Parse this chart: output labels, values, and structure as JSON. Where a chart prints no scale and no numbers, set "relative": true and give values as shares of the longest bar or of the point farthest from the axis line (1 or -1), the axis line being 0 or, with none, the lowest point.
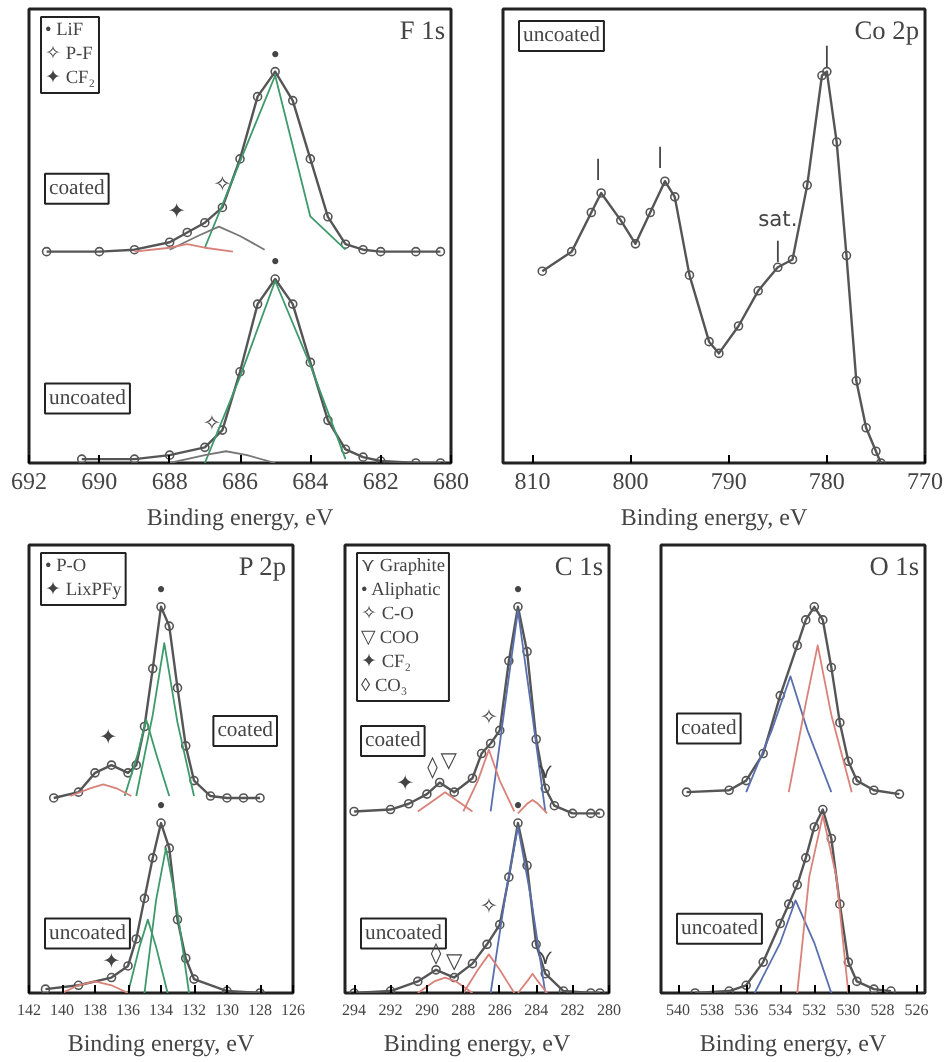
{
  "chart_data": [
    {
      "type": "line",
      "title": "F 1s",
      "xlabel": "Binding energy, eV",
      "relative": true,
      "xlim": [
        692,
        680
      ],
      "xticks": [
        692,
        690,
        688,
        686,
        684,
        682,
        680
      ],
      "annotations": [
        "• LiF",
        "✧ P-F",
        "✦ CF₂",
        {
          "text": "•",
          "x": 685,
          "y": 1.0
        },
        {
          "text": "✧",
          "x": 686.5,
          "y": 0.67
        },
        {
          "text": "✦",
          "x": 687.8,
          "y": 0.6
        },
        {
          "text": "•",
          "x": 685,
          "y": 0.47
        },
        {
          "text": "✧",
          "x": 686.8,
          "y": 0.06
        }
      ],
      "series": [
        {
          "name": "coated",
          "color": "#555555",
          "marker": "circle",
          "x": [
            691.5,
            690,
            689,
            688,
            687.5,
            687,
            686.5,
            686,
            685.5,
            685,
            684.5,
            684,
            683.5,
            683,
            682.5,
            682,
            681,
            680.3
          ],
          "values": [
            0.54,
            0.54,
            0.545,
            0.564,
            0.589,
            0.614,
            0.653,
            0.777,
            0.936,
            1.0,
            0.926,
            0.777,
            0.629,
            0.559,
            0.545,
            0.54,
            0.54,
            0.54
          ]
        },
        {
          "color": "#3f9a6a",
          "marker": "none",
          "x": [
            687,
            686,
            685,
            684,
            683
          ],
          "values": [
            0.55,
            0.77,
            0.99,
            0.63,
            0.545
          ]
        },
        {
          "color": "#777777",
          "marker": "none",
          "x": [
            688,
            687.2,
            686.6,
            686,
            685.3
          ],
          "values": [
            0.545,
            0.58,
            0.604,
            0.58,
            0.545
          ]
        },
        {
          "color": "#d9827a",
          "marker": "none",
          "x": [
            689,
            688,
            687.5,
            687,
            686.2
          ],
          "values": [
            0.54,
            0.55,
            0.559,
            0.55,
            0.54
          ]
        },
        {
          "name": "uncoated",
          "color": "#555555",
          "marker": "circle",
          "x": [
            690.5,
            689,
            688,
            687,
            686.5,
            686,
            685.5,
            685,
            684.5,
            684,
            683.5,
            683,
            682.5,
            682,
            681,
            680.3
          ],
          "values": [
            0.01,
            0.01,
            0.02,
            0.04,
            0.084,
            0.233,
            0.406,
            0.47,
            0.406,
            0.257,
            0.109,
            0.035,
            0.015,
            0.005,
            0.0,
            0.0
          ]
        },
        {
          "color": "#3f9a6a",
          "marker": "none",
          "x": [
            687,
            686,
            685,
            684,
            683
          ],
          "values": [
            0.0,
            0.22,
            0.465,
            0.25,
            0.01
          ]
        },
        {
          "color": "#777777",
          "marker": "none",
          "x": [
            688,
            687,
            686.4,
            685.8,
            685
          ],
          "values": [
            0.0,
            0.02,
            0.03,
            0.02,
            0.0
          ]
        }
      ]
    },
    {
      "type": "line",
      "title": "Co 2p",
      "xlabel": "Binding energy, eV",
      "relative": true,
      "xlim": [
        813,
        770
      ],
      "xticks": [
        810,
        800,
        790,
        780,
        770
      ],
      "annotations": [
        {
          "text": "|",
          "x": 803.3,
          "y": 0.71
        },
        {
          "text": "|",
          "x": 797,
          "y": 0.74
        },
        {
          "text": "sat.\n|",
          "x": 785,
          "y": 0.5
        },
        {
          "text": "|",
          "x": 780,
          "y": 1.0
        }
      ],
      "series": [
        {
          "name": "uncoated",
          "color": "#555555",
          "marker": "circle",
          "x": [
            809,
            806,
            804,
            803,
            801,
            799.5,
            798,
            796.5,
            795.5,
            794,
            792,
            791,
            789,
            787,
            785,
            783.5,
            782,
            780.5,
            780,
            779,
            778,
            777,
            776,
            775,
            774.5
          ],
          "values": [
            0.49,
            0.54,
            0.64,
            0.69,
            0.62,
            0.56,
            0.64,
            0.72,
            0.68,
            0.48,
            0.31,
            0.28,
            0.35,
            0.44,
            0.5,
            0.52,
            0.71,
            0.99,
            1.0,
            0.82,
            0.53,
            0.21,
            0.09,
            0.03,
            0.0
          ]
        }
      ]
    },
    {
      "type": "line",
      "title": "P 2p",
      "xlabel": "Binding energy, eV",
      "relative": true,
      "xlim": [
        142,
        126
      ],
      "xticks": [
        142,
        140,
        138,
        136,
        134,
        132,
        130,
        128,
        126
      ],
      "annotations": [
        "• P-O",
        "✦ LixPFy",
        {
          "text": "•",
          "x": 134,
          "y": 1.0
        },
        {
          "text": "✦",
          "x": 137.2,
          "y": 0.62
        },
        {
          "text": "•",
          "x": 134,
          "y": 0.44
        },
        {
          "text": "✦",
          "x": 137,
          "y": 0.04
        }
      ],
      "series": [
        {
          "name": "coated",
          "color": "#555555",
          "marker": "circle",
          "x": [
            140.5,
            139,
            138,
            137,
            136,
            135.5,
            135,
            134.5,
            134,
            133.5,
            133,
            132.5,
            132,
            131,
            130,
            129,
            128
          ],
          "values": [
            0.505,
            0.52,
            0.57,
            0.59,
            0.57,
            0.59,
            0.69,
            0.84,
            1.0,
            0.95,
            0.79,
            0.64,
            0.55,
            0.51,
            0.505,
            0.505,
            0.505
          ]
        },
        {
          "color": "#3f9a6a",
          "marker": "none",
          "x": [
            135.5,
            134.5,
            133.8,
            133,
            132
          ],
          "values": [
            0.51,
            0.72,
            0.906,
            0.7,
            0.51
          ]
        },
        {
          "color": "#3f9a6a",
          "marker": "none",
          "x": [
            136.2,
            135.4,
            134.9,
            134.3,
            133.5
          ],
          "values": [
            0.51,
            0.62,
            0.708,
            0.62,
            0.51
          ]
        },
        {
          "color": "#d9827a",
          "marker": "none",
          "x": [
            139.5,
            138.3,
            137.5,
            136.7,
            135.8
          ],
          "values": [
            0.51,
            0.53,
            0.54,
            0.53,
            0.51
          ]
        },
        {
          "name": "uncoated",
          "color": "#555555",
          "marker": "circle",
          "x": [
            141,
            139,
            137,
            136,
            135.5,
            135,
            134.5,
            134,
            133.5,
            133,
            132.5,
            132,
            130,
            128
          ],
          "values": [
            0.01,
            0.02,
            0.04,
            0.07,
            0.14,
            0.245,
            0.35,
            0.44,
            0.375,
            0.19,
            0.09,
            0.036,
            0.005,
            0.0
          ]
        },
        {
          "color": "#3f9a6a",
          "marker": "none",
          "x": [
            135,
            134.3,
            133.7,
            133.1,
            132.3
          ],
          "values": [
            0.0,
            0.24,
            0.375,
            0.24,
            0.0
          ]
        },
        {
          "color": "#3f9a6a",
          "marker": "none",
          "x": [
            136,
            135.3,
            134.8,
            134.3,
            133.6
          ],
          "values": [
            0.0,
            0.12,
            0.19,
            0.12,
            0.0
          ]
        },
        {
          "color": "#d9827a",
          "marker": "none",
          "x": [
            140,
            139,
            138,
            137,
            136
          ],
          "values": [
            0.0,
            0.02,
            0.03,
            0.02,
            0.0
          ]
        }
      ]
    },
    {
      "type": "line",
      "title": "C 1s",
      "xlabel": "Binding energy, eV",
      "relative": true,
      "xlim": [
        294.5,
        280
      ],
      "xticks": [
        294,
        292,
        290,
        288,
        286,
        284,
        282,
        280
      ],
      "annotations": [
        "⋎ Graphite",
        "• Aliphatic",
        "✧ C-O",
        "▽ COO",
        "✦ CF₂",
        "◊ CO₃",
        {
          "text": "•",
          "x": 285,
          "y": 1.0
        },
        {
          "text": "✧",
          "x": 286.6,
          "y": 0.67
        },
        {
          "text": "▽",
          "x": 288.8,
          "y": 0.56
        },
        {
          "text": "◊",
          "x": 289.7,
          "y": 0.54
        },
        {
          "text": "✦",
          "x": 291.2,
          "y": 0.5
        },
        {
          "text": "⋎",
          "x": 283.5,
          "y": 0.53
        },
        {
          "text": "•",
          "x": 285,
          "y": 0.44
        },
        {
          "text": "✧",
          "x": 286.6,
          "y": 0.18
        },
        {
          "text": "▽",
          "x": 288.5,
          "y": 0.04
        },
        {
          "text": "◊",
          "x": 289.5,
          "y": 0.06
        },
        {
          "text": "⋎",
          "x": 283.5,
          "y": 0.05
        }
      ],
      "series": [
        {
          "name": "coated",
          "color": "#555555",
          "marker": "circle",
          "x": [
            294,
            292,
            291,
            290,
            289.3,
            288.5,
            287.5,
            287,
            286.5,
            286,
            285.5,
            285,
            284.5,
            284,
            283.5,
            283,
            282,
            281,
            280.5
          ],
          "values": [
            0.47,
            0.475,
            0.49,
            0.515,
            0.545,
            0.52,
            0.556,
            0.62,
            0.646,
            0.68,
            0.86,
            1.0,
            0.884,
            0.657,
            0.53,
            0.485,
            0.465,
            0.465,
            0.465
          ]
        },
        {
          "color": "#5a6fae",
          "marker": "none",
          "x": [
            286.5,
            285.7,
            285,
            284.3,
            283.5
          ],
          "values": [
            0.47,
            0.75,
            0.99,
            0.75,
            0.47
          ]
        },
        {
          "color": "#d9827a",
          "marker": "none",
          "x": [
            288,
            287.2,
            286.6,
            286,
            285.2
          ],
          "values": [
            0.47,
            0.55,
            0.63,
            0.55,
            0.47
          ]
        },
        {
          "color": "#d9827a",
          "marker": "none",
          "x": [
            290.5,
            289.6,
            289,
            288.4,
            287.5
          ],
          "values": [
            0.47,
            0.5,
            0.52,
            0.5,
            0.47
          ]
        },
        {
          "color": "#d9827a",
          "marker": "none",
          "x": [
            285,
            284.5,
            284.2,
            283.9,
            283.4
          ],
          "values": [
            0.465,
            0.49,
            0.5,
            0.49,
            0.465
          ]
        },
        {
          "name": "uncoated",
          "color": "#555555",
          "marker": "circle",
          "x": [
            294,
            292,
            290.5,
            289.5,
            288.5,
            287.5,
            286.7,
            286,
            285.5,
            285,
            284.5,
            284,
            283.5,
            282.5,
            281,
            280.5
          ],
          "values": [
            0.0,
            0.005,
            0.03,
            0.06,
            0.04,
            0.076,
            0.126,
            0.177,
            0.3,
            0.44,
            0.33,
            0.126,
            0.05,
            0.005,
            0.0,
            0.0
          ]
        },
        {
          "color": "#5a6fae",
          "marker": "none",
          "x": [
            286.5,
            285.7,
            285,
            284.3,
            283.5
          ],
          "values": [
            0.0,
            0.25,
            0.43,
            0.25,
            0.0
          ]
        },
        {
          "color": "#d9827a",
          "marker": "none",
          "x": [
            288,
            287.2,
            286.6,
            286,
            285.2
          ],
          "values": [
            0.0,
            0.06,
            0.1,
            0.06,
            0.0
          ]
        },
        {
          "color": "#d9827a",
          "marker": "none",
          "x": [
            290.5,
            289.6,
            289,
            288.4,
            287.5
          ],
          "values": [
            0.0,
            0.03,
            0.04,
            0.03,
            0.0
          ]
        },
        {
          "color": "#d9827a",
          "marker": "none",
          "x": [
            285,
            284.5,
            284.2,
            283.9,
            283.4
          ],
          "values": [
            0.0,
            0.03,
            0.05,
            0.03,
            0.0
          ]
        }
      ]
    },
    {
      "type": "line",
      "title": "O 1s",
      "xlabel": "Binding energy, eV",
      "relative": true,
      "xlim": [
        541,
        525.5
      ],
      "xticks": [
        540,
        538,
        536,
        534,
        532,
        530,
        528,
        526
      ],
      "series": [
        {
          "name": "coated",
          "color": "#555555",
          "marker": "circle",
          "x": [
            539.5,
            537,
            536,
            535,
            534,
            533,
            532.5,
            532,
            531.5,
            531,
            530.5,
            530,
            529.5,
            528.5,
            527
          ],
          "values": [
            0.52,
            0.525,
            0.55,
            0.62,
            0.77,
            0.9,
            0.966,
            1.0,
            0.966,
            0.843,
            0.7,
            0.6,
            0.55,
            0.525,
            0.515
          ]
        },
        {
          "color": "#5a6fae",
          "marker": "none",
          "x": [
            536,
            534.5,
            533.4,
            532.4,
            531
          ],
          "values": [
            0.52,
            0.68,
            0.82,
            0.68,
            0.52
          ]
        },
        {
          "color": "#d9827a",
          "marker": "none",
          "x": [
            533.5,
            532.5,
            531.8,
            531,
            529.8
          ],
          "values": [
            0.52,
            0.75,
            0.9,
            0.72,
            0.52
          ]
        },
        {
          "name": "uncoated",
          "color": "#555555",
          "marker": "circle",
          "x": [
            539,
            537,
            536,
            535,
            534,
            533.5,
            533,
            532.5,
            532,
            531.5,
            531,
            530.5,
            530,
            529.5,
            528.5,
            527.5
          ],
          "values": [
            0.0,
            0.005,
            0.02,
            0.08,
            0.18,
            0.23,
            0.28,
            0.35,
            0.43,
            0.475,
            0.4,
            0.23,
            0.08,
            0.03,
            0.01,
            0.005
          ]
        },
        {
          "color": "#5a6fae",
          "marker": "none",
          "x": [
            535.5,
            534,
            533.1,
            532,
            531
          ],
          "values": [
            0.0,
            0.13,
            0.24,
            0.13,
            0.0
          ]
        },
        {
          "color": "#d9827a",
          "marker": "none",
          "x": [
            533,
            532.3,
            531.5,
            530.7,
            530
          ],
          "values": [
            0.0,
            0.3,
            0.46,
            0.3,
            0.0
          ]
        }
      ]
    }
  ]
}
